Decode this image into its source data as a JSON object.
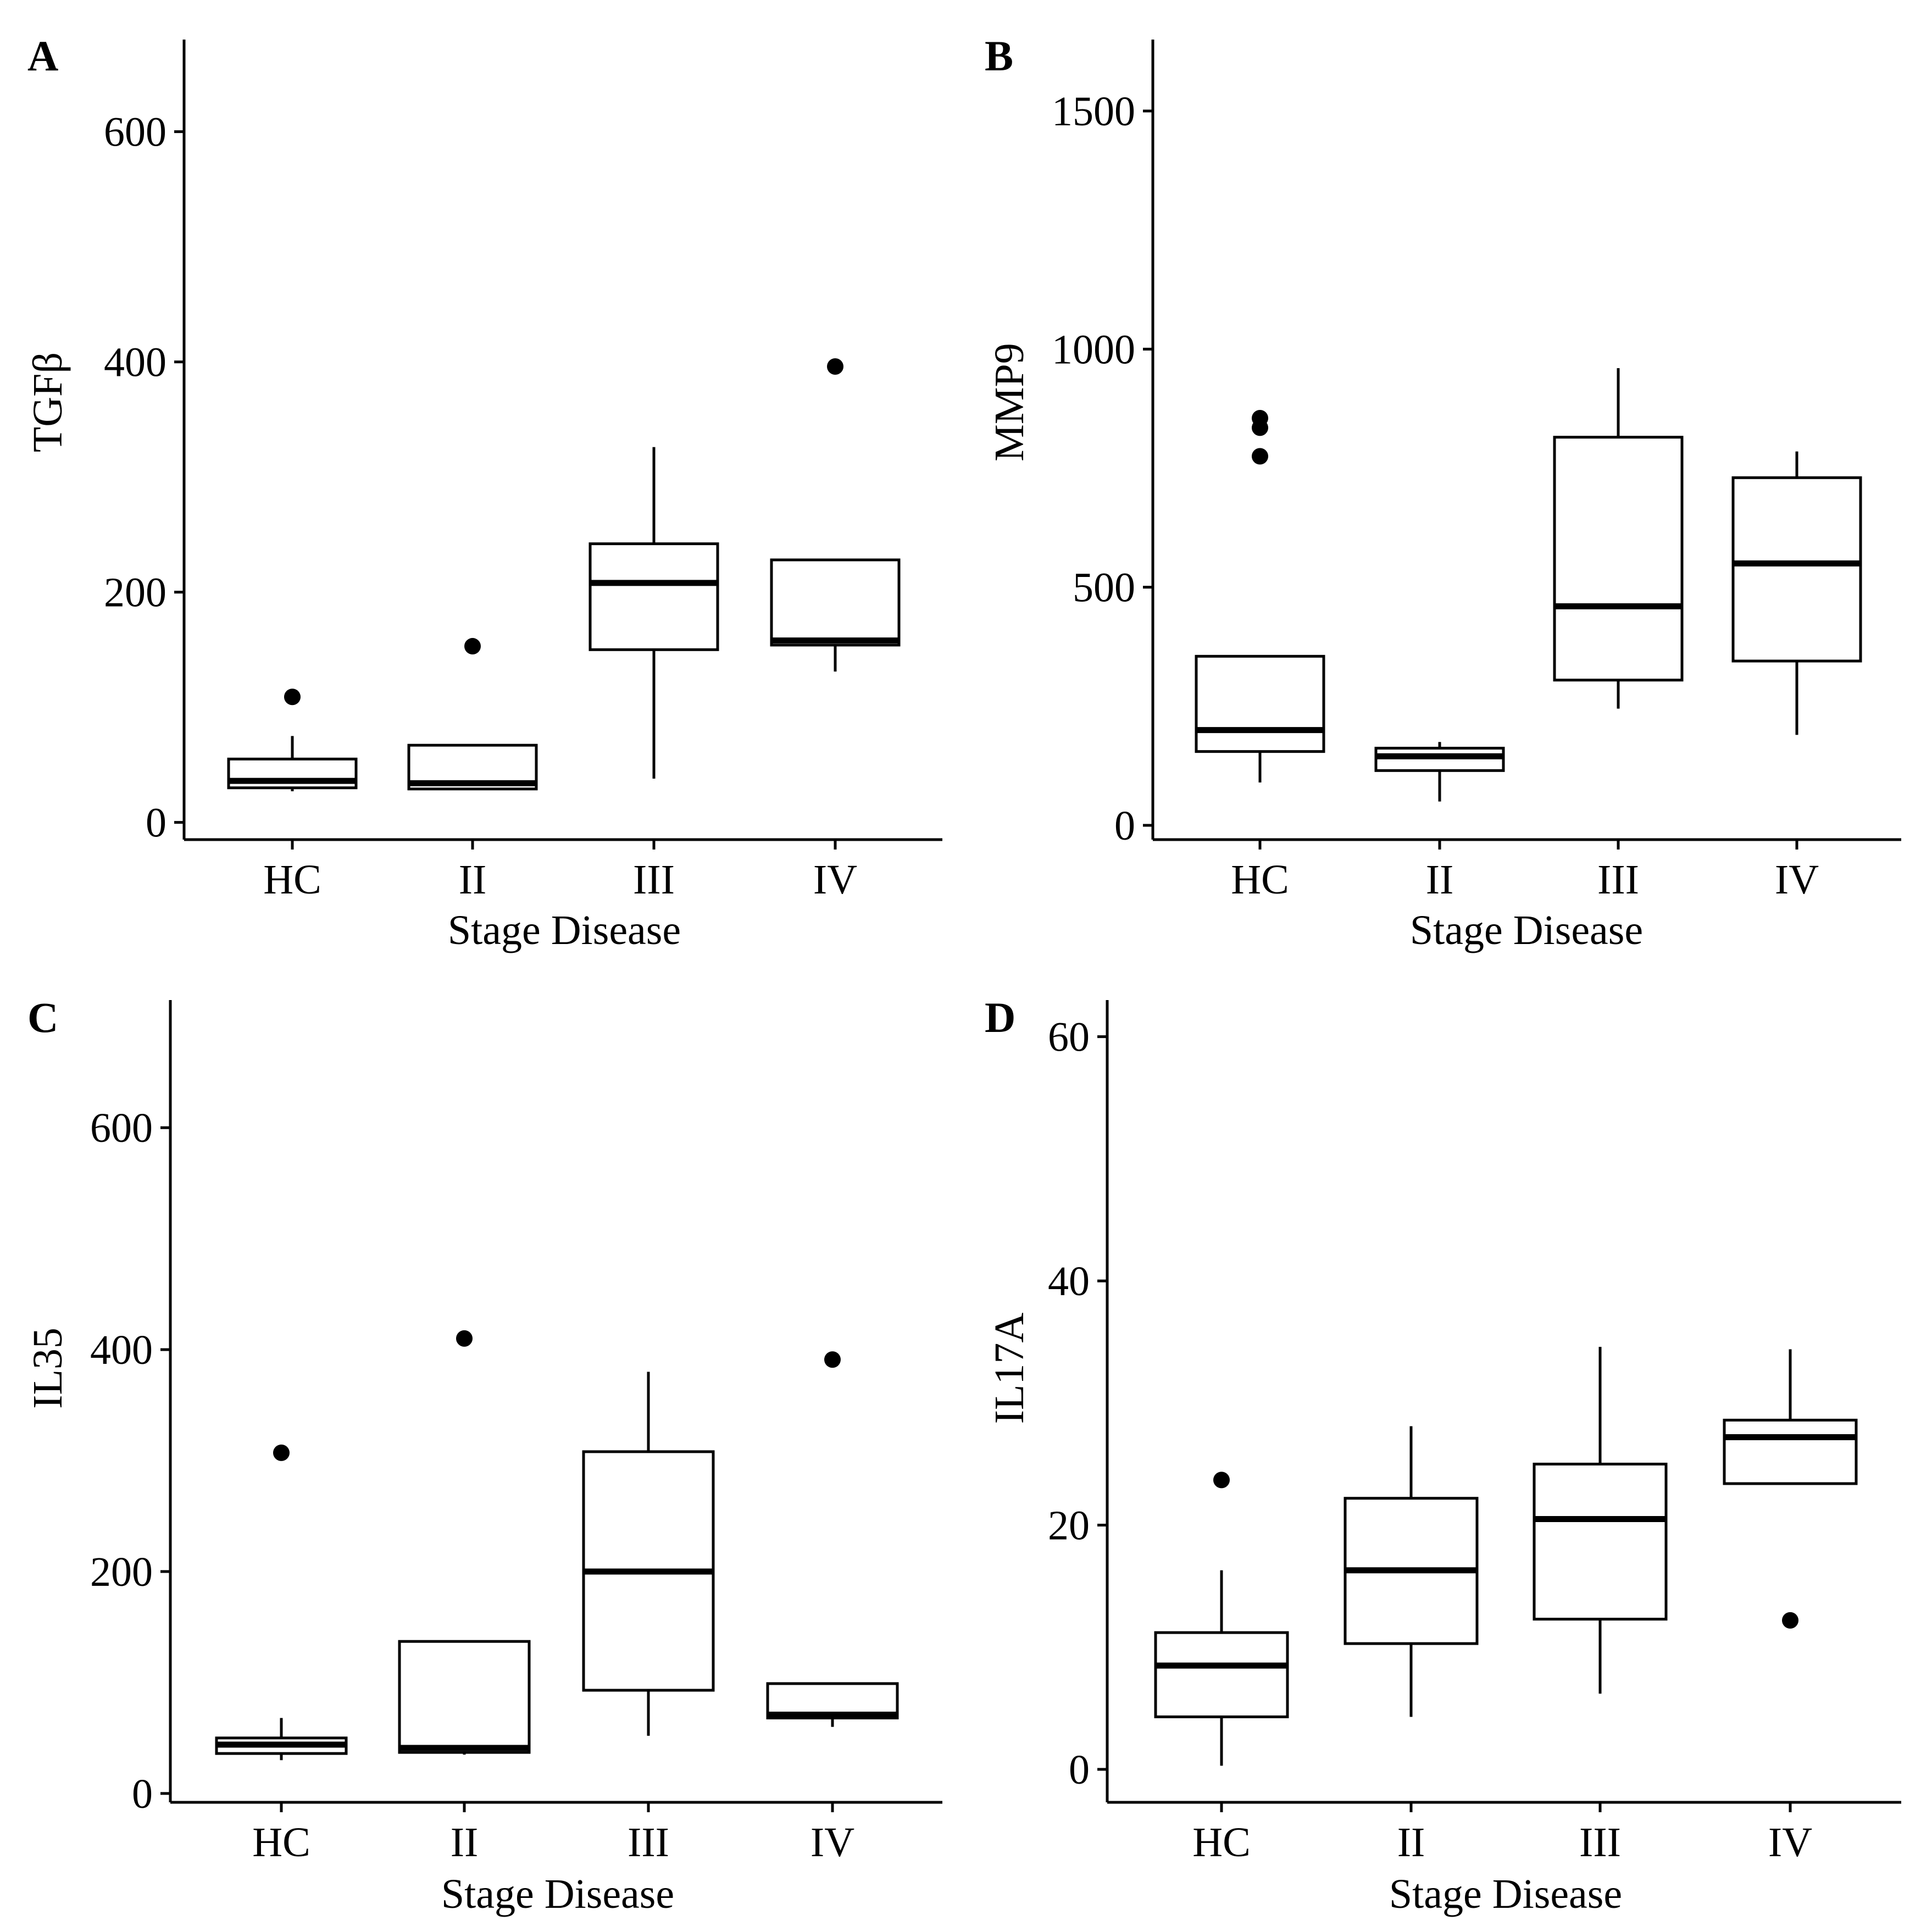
{
  "chart_data": [
    {
      "type": "box",
      "panel": "A",
      "ylabel": "TGFβ",
      "xlabel": "Stage Disease",
      "categories": [
        "HC",
        "II",
        "III",
        "IV"
      ],
      "ylim": [
        -15,
        680
      ],
      "yticks": [
        0,
        200,
        400,
        600
      ],
      "boxes": [
        {
          "min": 27,
          "q1": 30,
          "median": 36,
          "q3": 55,
          "max": 75,
          "outliers": [
            109
          ]
        },
        {
          "min": 28,
          "q1": 29,
          "median": 34,
          "q3": 67,
          "max": 67,
          "outliers": [
            153
          ]
        },
        {
          "min": 38,
          "q1": 150,
          "median": 208,
          "q3": 242,
          "max": 326,
          "outliers": []
        },
        {
          "min": 131,
          "q1": 154,
          "median": 158,
          "q3": 228,
          "max": 228,
          "outliers": [
            396
          ]
        }
      ]
    },
    {
      "type": "box",
      "panel": "B",
      "ylabel": "MMP9",
      "xlabel": "Stage Disease",
      "categories": [
        "HC",
        "II",
        "III",
        "IV"
      ],
      "ylim": [
        -30,
        1650
      ],
      "yticks": [
        0,
        500,
        1000,
        1500
      ],
      "boxes": [
        {
          "min": 90,
          "q1": 155,
          "median": 200,
          "q3": 355,
          "max": 355,
          "outliers": [
            775,
            835,
            855
          ]
        },
        {
          "min": 50,
          "q1": 115,
          "median": 145,
          "q3": 162,
          "max": 175,
          "outliers": []
        },
        {
          "min": 245,
          "q1": 305,
          "median": 460,
          "q3": 815,
          "max": 960,
          "outliers": []
        },
        {
          "min": 190,
          "q1": 345,
          "median": 550,
          "q3": 730,
          "max": 785,
          "outliers": []
        }
      ]
    },
    {
      "type": "box",
      "panel": "C",
      "ylabel": "IL35",
      "xlabel": "Stage Disease",
      "categories": [
        "HC",
        "II",
        "III",
        "IV"
      ],
      "ylim": [
        -8,
        715
      ],
      "yticks": [
        0,
        200,
        400,
        600
      ],
      "boxes": [
        {
          "min": 30,
          "q1": 36,
          "median": 44,
          "q3": 50,
          "max": 68,
          "outliers": [
            307
          ]
        },
        {
          "min": 35,
          "q1": 37,
          "median": 41,
          "q3": 137,
          "max": 137,
          "outliers": [
            410
          ]
        },
        {
          "min": 52,
          "q1": 93,
          "median": 200,
          "q3": 308,
          "max": 380,
          "outliers": []
        },
        {
          "min": 60,
          "q1": 68,
          "median": 71,
          "q3": 99,
          "max": 99,
          "outliers": [
            391
          ]
        }
      ]
    },
    {
      "type": "box",
      "panel": "D",
      "ylabel": "IL17A",
      "xlabel": "Stage Disease",
      "categories": [
        "HC",
        "II",
        "III",
        "IV"
      ],
      "ylim": [
        -2.7,
        63
      ],
      "yticks": [
        0,
        20,
        40,
        60
      ],
      "boxes": [
        {
          "min": 0.3,
          "q1": 4.3,
          "median": 8.5,
          "q3": 11.2,
          "max": 16.3,
          "outliers": [
            23.7
          ]
        },
        {
          "min": 4.3,
          "q1": 10.3,
          "median": 16.3,
          "q3": 22.2,
          "max": 28.1,
          "outliers": []
        },
        {
          "min": 6.2,
          "q1": 12.3,
          "median": 20.5,
          "q3": 25.0,
          "max": 34.6,
          "outliers": []
        },
        {
          "min": 23.4,
          "q1": 23.4,
          "median": 27.2,
          "q3": 28.6,
          "max": 34.4,
          "outliers": [
            12.2
          ]
        }
      ]
    }
  ]
}
